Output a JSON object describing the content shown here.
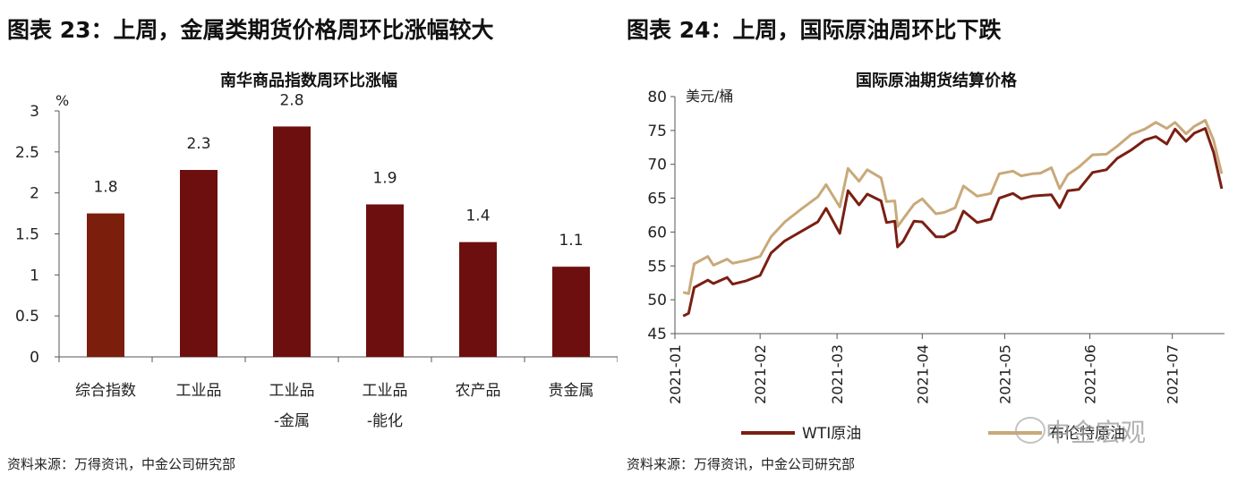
{
  "headings": {
    "left": "图表 23：上周，金属类期货价格周环比涨幅较大",
    "right": "图表 24：上周，国际原油周环比下跌"
  },
  "sources": {
    "left": "资料来源：万得资讯，中金公司研究部",
    "right": "资料来源：万得资讯，中金公司研究部"
  },
  "watermark": "中金宏观",
  "chart_data": [
    {
      "type": "bar",
      "title": "南华商品指数周环比涨幅",
      "ylabel": "%",
      "ylim": [
        0,
        3
      ],
      "yticks": [
        "0",
        "0.5",
        "1",
        "1.5",
        "2",
        "2.5",
        "3"
      ],
      "categories": [
        [
          "综合指数"
        ],
        [
          "工业品"
        ],
        [
          "工业品",
          "-金属"
        ],
        [
          "工业品",
          "-能化"
        ],
        [
          "农产品"
        ],
        [
          "贵金属"
        ]
      ],
      "values": [
        1.75,
        2.28,
        2.81,
        1.86,
        1.4,
        1.1
      ],
      "data_labels": [
        "1.8",
        "2.3",
        "2.8",
        "1.9",
        "1.4",
        "1.1"
      ],
      "colors": [
        "#7b1e0c",
        "#6e0f0f",
        "#6e0f0f",
        "#6e0f0f",
        "#6e0f0f",
        "#6e0f0f"
      ],
      "grid": false
    },
    {
      "type": "line",
      "title": "国际原油期货结算价格",
      "ylabel": "美元/桶",
      "ylim": [
        45,
        80
      ],
      "yticks": [
        "45",
        "50",
        "55",
        "60",
        "65",
        "70",
        "75",
        "80"
      ],
      "xlim": [
        "2021-01-01",
        "2021-07-20"
      ],
      "xticks": [
        "2021-01",
        "2021-02",
        "2021-03",
        "2021-04",
        "2021-05",
        "2021-06",
        "2021-07"
      ],
      "legend_position": "bottom",
      "grid": false,
      "series": [
        {
          "name": "WTI原油",
          "color": "#7a1f12",
          "points": [
            [
              "2021-01-04",
              47.6
            ],
            [
              "2021-01-06",
              48.0
            ],
            [
              "2021-01-08",
              51.8
            ],
            [
              "2021-01-13",
              52.9
            ],
            [
              "2021-01-15",
              52.4
            ],
            [
              "2021-01-20",
              53.3
            ],
            [
              "2021-01-22",
              52.3
            ],
            [
              "2021-01-27",
              52.8
            ],
            [
              "2021-02-01",
              53.6
            ],
            [
              "2021-02-05",
              56.9
            ],
            [
              "2021-02-10",
              58.7
            ],
            [
              "2021-02-16",
              60.1
            ],
            [
              "2021-02-22",
              61.5
            ],
            [
              "2021-02-25",
              63.5
            ],
            [
              "2021-03-02",
              59.8
            ],
            [
              "2021-03-05",
              66.1
            ],
            [
              "2021-03-09",
              64.0
            ],
            [
              "2021-03-12",
              65.6
            ],
            [
              "2021-03-17",
              64.6
            ],
            [
              "2021-03-19",
              61.4
            ],
            [
              "2021-03-22",
              61.6
            ],
            [
              "2021-03-23",
              57.8
            ],
            [
              "2021-03-25",
              58.6
            ],
            [
              "2021-03-29",
              61.6
            ],
            [
              "2021-04-01",
              61.5
            ],
            [
              "2021-04-06",
              59.3
            ],
            [
              "2021-04-09",
              59.3
            ],
            [
              "2021-04-13",
              60.2
            ],
            [
              "2021-04-16",
              63.1
            ],
            [
              "2021-04-21",
              61.4
            ],
            [
              "2021-04-26",
              61.9
            ],
            [
              "2021-04-29",
              65.0
            ],
            [
              "2021-05-04",
              65.7
            ],
            [
              "2021-05-07",
              64.9
            ],
            [
              "2021-05-11",
              65.3
            ],
            [
              "2021-05-14",
              65.4
            ],
            [
              "2021-05-18",
              65.5
            ],
            [
              "2021-05-21",
              63.6
            ],
            [
              "2021-05-24",
              66.1
            ],
            [
              "2021-05-28",
              66.3
            ],
            [
              "2021-06-02",
              68.8
            ],
            [
              "2021-06-07",
              69.2
            ],
            [
              "2021-06-11",
              70.9
            ],
            [
              "2021-06-16",
              72.1
            ],
            [
              "2021-06-21",
              73.6
            ],
            [
              "2021-06-25",
              74.1
            ],
            [
              "2021-06-29",
              73.0
            ],
            [
              "2021-07-02",
              75.2
            ],
            [
              "2021-07-06",
              73.4
            ],
            [
              "2021-07-09",
              74.6
            ],
            [
              "2021-07-13",
              75.3
            ],
            [
              "2021-07-16",
              71.8
            ],
            [
              "2021-07-19",
              66.4
            ]
          ]
        },
        {
          "name": "布伦特原油",
          "color": "#c9a97a",
          "points": [
            [
              "2021-01-04",
              51.1
            ],
            [
              "2021-01-06",
              50.9
            ],
            [
              "2021-01-08",
              55.3
            ],
            [
              "2021-01-13",
              56.4
            ],
            [
              "2021-01-15",
              55.1
            ],
            [
              "2021-01-20",
              56.0
            ],
            [
              "2021-01-22",
              55.4
            ],
            [
              "2021-01-27",
              55.8
            ],
            [
              "2021-02-01",
              56.4
            ],
            [
              "2021-02-05",
              59.3
            ],
            [
              "2021-02-10",
              61.5
            ],
            [
              "2021-02-16",
              63.4
            ],
            [
              "2021-02-22",
              65.2
            ],
            [
              "2021-02-25",
              67.0
            ],
            [
              "2021-03-02",
              63.7
            ],
            [
              "2021-03-05",
              69.4
            ],
            [
              "2021-03-09",
              67.5
            ],
            [
              "2021-03-12",
              69.2
            ],
            [
              "2021-03-17",
              68.0
            ],
            [
              "2021-03-19",
              64.5
            ],
            [
              "2021-03-22",
              64.6
            ],
            [
              "2021-03-23",
              60.8
            ],
            [
              "2021-03-25",
              61.9
            ],
            [
              "2021-03-29",
              64.1
            ],
            [
              "2021-04-01",
              64.9
            ],
            [
              "2021-04-06",
              62.7
            ],
            [
              "2021-04-09",
              62.9
            ],
            [
              "2021-04-13",
              63.6
            ],
            [
              "2021-04-16",
              66.8
            ],
            [
              "2021-04-21",
              65.3
            ],
            [
              "2021-04-26",
              65.7
            ],
            [
              "2021-04-29",
              68.6
            ],
            [
              "2021-05-04",
              69.0
            ],
            [
              "2021-05-07",
              68.3
            ],
            [
              "2021-05-11",
              68.6
            ],
            [
              "2021-05-14",
              68.7
            ],
            [
              "2021-05-18",
              69.5
            ],
            [
              "2021-05-21",
              66.4
            ],
            [
              "2021-05-24",
              68.5
            ],
            [
              "2021-05-28",
              69.6
            ],
            [
              "2021-06-02",
              71.4
            ],
            [
              "2021-06-07",
              71.5
            ],
            [
              "2021-06-11",
              72.7
            ],
            [
              "2021-06-16",
              74.4
            ],
            [
              "2021-06-21",
              75.2
            ],
            [
              "2021-06-25",
              76.2
            ],
            [
              "2021-06-29",
              75.3
            ],
            [
              "2021-07-02",
              76.2
            ],
            [
              "2021-07-06",
              74.5
            ],
            [
              "2021-07-09",
              75.6
            ],
            [
              "2021-07-13",
              76.5
            ],
            [
              "2021-07-16",
              73.6
            ],
            [
              "2021-07-19",
              68.6
            ]
          ]
        }
      ]
    }
  ]
}
